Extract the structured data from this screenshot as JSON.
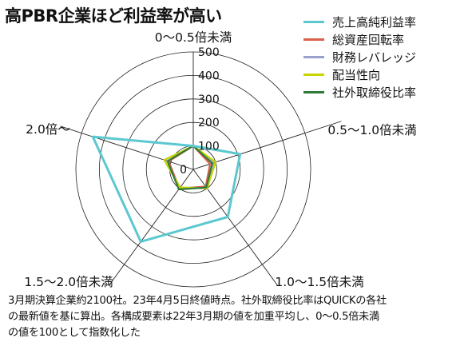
{
  "colors": {
    "background": "#ffffff",
    "grid": "#222222",
    "series": [
      "#5bc8d0",
      "#d9604a",
      "#9aa0cc",
      "#c8d400",
      "#2f7a3a"
    ]
  },
  "chart_data": {
    "type": "radar",
    "title": "高PBR企業ほど利益率が高い",
    "categories": [
      "0～0.5倍未満",
      "0.5～1.0倍未満",
      "1.0～1.5倍未満",
      "1.5～2.0倍未満",
      "2.0倍～"
    ],
    "rlim": [
      0,
      500
    ],
    "rticks": [
      0,
      100,
      200,
      300,
      400,
      500
    ],
    "grid": true,
    "legend_position": "top-right",
    "series": [
      {
        "name": "売上高純利益率",
        "values": [
          100,
          210,
          250,
          380,
          450
        ]
      },
      {
        "name": "総資産回転率",
        "values": [
          100,
          75,
          90,
          100,
          110
        ]
      },
      {
        "name": "財務レバレッジ",
        "values": [
          100,
          90,
          100,
          95,
          130
        ]
      },
      {
        "name": "配当性向",
        "values": [
          100,
          100,
          100,
          95,
          130
        ]
      },
      {
        "name": "社外取締役比率",
        "values": [
          100,
          85,
          95,
          105,
          115
        ]
      }
    ]
  },
  "note_lines": [
    "3月期決算企業約2100社。23年4月5日終値時点。社外取締役比率はQUICKの各社",
    "の最新値を基に算出。各構成要素は22年3月期の値を加重平均し、0～0.5倍未満",
    "の値を100として指数化した"
  ]
}
